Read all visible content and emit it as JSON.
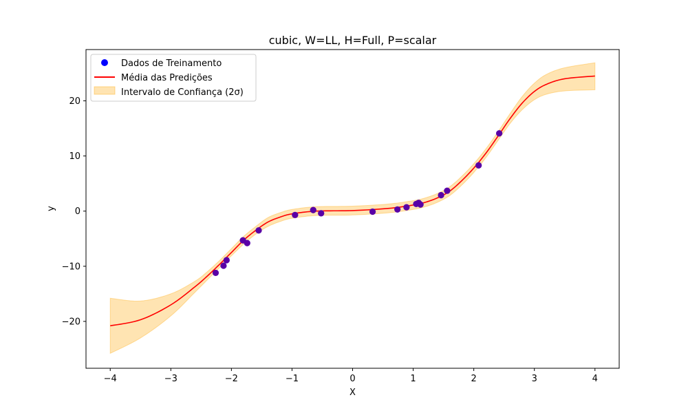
{
  "chart_data": {
    "type": "line",
    "title": "cubic, W=LL, H=Full, P=scalar",
    "xlabel": "X",
    "ylabel": "y",
    "xlim": [
      -4.4,
      4.4
    ],
    "ylim": [
      -28.5,
      29.3
    ],
    "xticks": [
      -4,
      -3,
      -2,
      -1,
      0,
      1,
      2,
      3,
      4
    ],
    "yticks": [
      -20,
      -10,
      0,
      10,
      20
    ],
    "xtick_labels": [
      "−4",
      "−3",
      "−2",
      "−1",
      "0",
      "1",
      "2",
      "3",
      "4"
    ],
    "ytick_labels": [
      "−20",
      "−10",
      "0",
      "10",
      "20"
    ],
    "grid": false,
    "legend_position": "top-left",
    "colors": {
      "points": "#0000ff",
      "mean": "#ff0000",
      "band_fill": "#ffa500",
      "band_edge": "#ffa500"
    },
    "series": [
      {
        "name": "Dados de Treinamento",
        "kind": "scatter",
        "x": [
          -2.26,
          -2.13,
          -2.08,
          -1.81,
          -1.74,
          -1.55,
          -0.95,
          -0.65,
          -0.52,
          0.33,
          0.74,
          0.89,
          1.05,
          1.09,
          1.12,
          1.46,
          1.56,
          2.08,
          2.42
        ],
        "y": [
          -11.2,
          -9.9,
          -8.9,
          -5.3,
          -5.8,
          -3.5,
          -0.7,
          0.2,
          -0.4,
          -0.1,
          0.3,
          0.7,
          1.3,
          1.5,
          1.2,
          2.9,
          3.7,
          8.3,
          14.1
        ]
      },
      {
        "name": "Média das Predições",
        "kind": "line",
        "x": [
          -4.0,
          -3.5,
          -3.0,
          -2.6,
          -2.4,
          -2.2,
          -2.0,
          -1.8,
          -1.6,
          -1.4,
          -1.2,
          -1.0,
          -0.6,
          0.0,
          0.6,
          1.0,
          1.2,
          1.4,
          1.6,
          1.8,
          2.0,
          2.2,
          2.4,
          2.6,
          2.8,
          3.0,
          3.2,
          3.5,
          4.0
        ],
        "y": [
          -20.8,
          -19.7,
          -17.0,
          -13.7,
          -11.8,
          -9.7,
          -7.5,
          -5.3,
          -3.5,
          -2.0,
          -1.1,
          -0.5,
          0.0,
          0.1,
          0.5,
          1.1,
          1.6,
          2.4,
          3.6,
          5.5,
          7.8,
          10.5,
          13.6,
          16.8,
          19.6,
          21.7,
          23.0,
          24.0,
          24.5
        ]
      },
      {
        "name": "Intervalo de Confiança (2σ)",
        "kind": "band",
        "x": [
          -4.0,
          -3.5,
          -3.0,
          -2.6,
          -2.4,
          -2.2,
          -2.0,
          -1.8,
          -1.6,
          -1.4,
          -1.2,
          -1.0,
          -0.6,
          0.0,
          0.6,
          1.0,
          1.2,
          1.4,
          1.6,
          1.8,
          2.0,
          2.2,
          2.4,
          2.6,
          2.8,
          3.0,
          3.2,
          3.5,
          4.0
        ],
        "lower": [
          -25.8,
          -23.0,
          -19.0,
          -14.7,
          -12.5,
          -10.3,
          -8.1,
          -6.0,
          -4.2,
          -2.8,
          -1.9,
          -1.3,
          -0.8,
          -0.7,
          -0.3,
          0.3,
          0.8,
          1.6,
          2.8,
          4.7,
          7.0,
          9.7,
          12.8,
          15.9,
          18.4,
          20.2,
          21.2,
          21.8,
          22.0
        ],
        "upper": [
          -15.8,
          -16.3,
          -15.0,
          -12.7,
          -11.0,
          -9.0,
          -6.8,
          -4.6,
          -2.8,
          -1.2,
          -0.3,
          0.3,
          0.8,
          0.9,
          1.3,
          1.9,
          2.4,
          3.2,
          4.4,
          6.3,
          8.6,
          11.3,
          14.4,
          17.7,
          20.8,
          23.2,
          24.8,
          26.0,
          26.9
        ]
      }
    ]
  }
}
